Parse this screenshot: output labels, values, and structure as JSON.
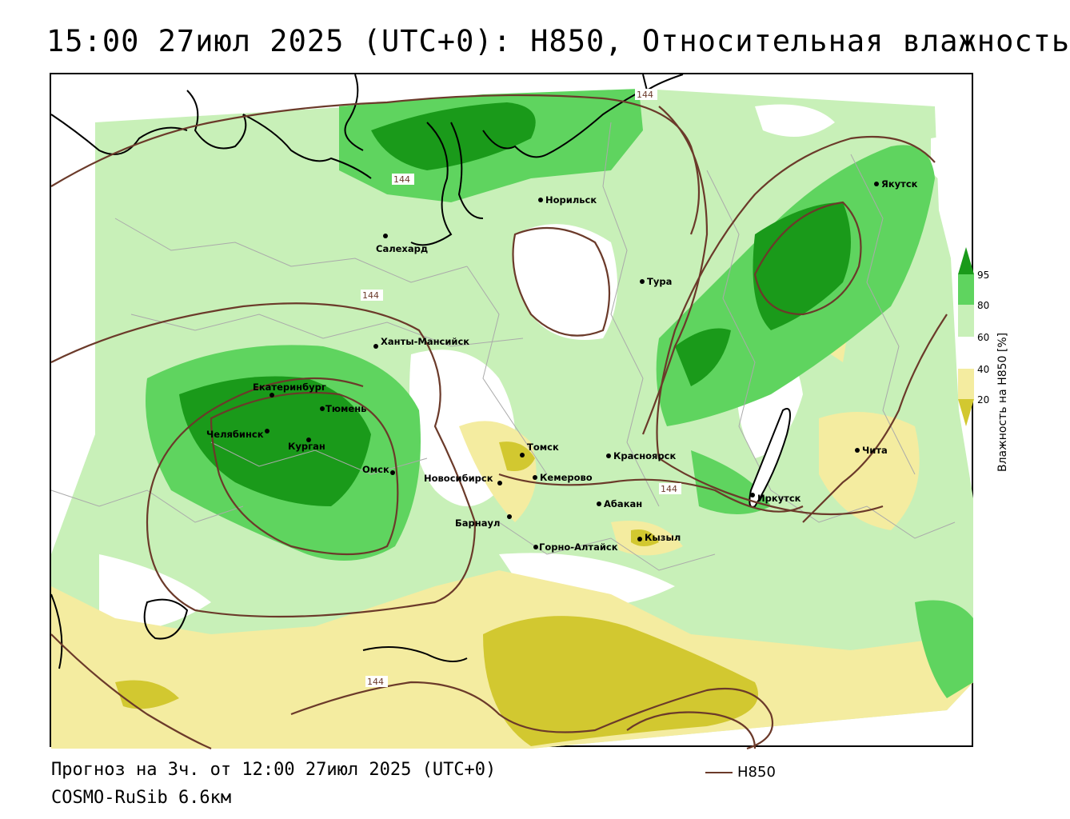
{
  "title": "15:00 27июл 2025 (UTC+0): H850, Относительная влажность",
  "forecast_line": "Прогноз на 3ч. от 12:00 27июл 2025 (UTC+0)",
  "model_line": "COSMO-RuSib 6.6км",
  "contour_key": "H850",
  "contour_value": "144",
  "legend": {
    "title": "Влажность на H850 [%]",
    "ticks": [
      "95",
      "80",
      "60",
      "40",
      "20"
    ],
    "colors": {
      "very_dry": "#d2c830",
      "dry": "#f4eca0",
      "neutral": "#ffffff",
      "moist": "#c8f0b8",
      "wet": "#5fd45f",
      "very_wet": "#1a9a1a"
    }
  },
  "colors": {
    "contour": "#6b3a2a",
    "coast": "#000000",
    "borders": "#aaaaaa"
  },
  "cities": [
    {
      "name": "Якутск"
    },
    {
      "name": "Норильск"
    },
    {
      "name": "Салехард"
    },
    {
      "name": "Тура"
    },
    {
      "name": "Ханты-Мансийск"
    },
    {
      "name": "Екатеринбург"
    },
    {
      "name": "Тюмень"
    },
    {
      "name": "Челябинск"
    },
    {
      "name": "Курган"
    },
    {
      "name": "Омск"
    },
    {
      "name": "Новосибирск"
    },
    {
      "name": "Томск"
    },
    {
      "name": "Кемерово"
    },
    {
      "name": "Красноярск"
    },
    {
      "name": "Абакан"
    },
    {
      "name": "Барнаул"
    },
    {
      "name": "Горно-Алтайск"
    },
    {
      "name": "Кызыл"
    },
    {
      "name": "Иркутск"
    },
    {
      "name": "Чита"
    }
  ]
}
